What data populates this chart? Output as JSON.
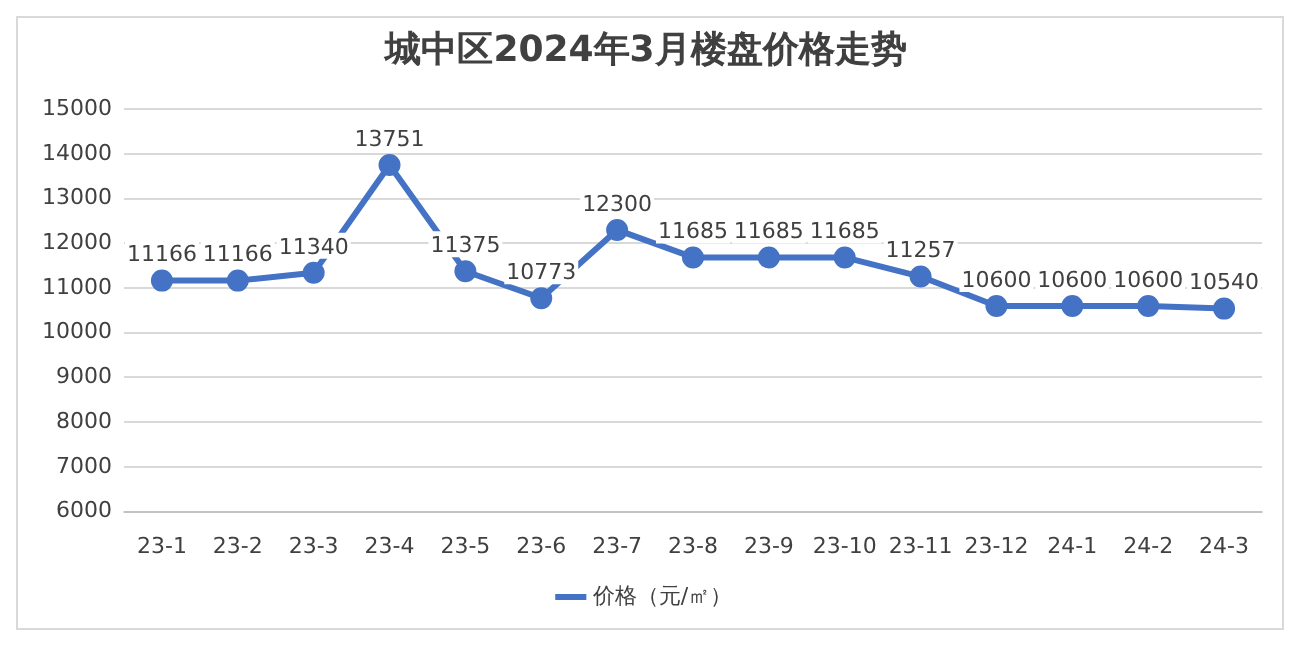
{
  "chart_data": {
    "type": "line",
    "title": "城中区2024年3月楼盘价格走势",
    "categories": [
      "23-1",
      "23-2",
      "23-3",
      "23-4",
      "23-5",
      "23-6",
      "23-7",
      "23-8",
      "23-9",
      "23-10",
      "23-11",
      "23-12",
      "24-1",
      "24-2",
      "24-3"
    ],
    "series": [
      {
        "name": "价格（元/㎡）",
        "color": "#4472c4",
        "values": [
          11166,
          11166,
          11340,
          13751,
          11375,
          10773,
          12300,
          11685,
          11685,
          11685,
          11257,
          10600,
          10600,
          10600,
          10540
        ]
      }
    ],
    "ylim": [
      6000,
      15000
    ],
    "yticks": [
      6000,
      7000,
      8000,
      9000,
      10000,
      11000,
      12000,
      13000,
      14000,
      15000
    ],
    "grid": "y",
    "legend": "bottom",
    "marker": "circle",
    "line_style": "solid",
    "data_labels": true
  }
}
